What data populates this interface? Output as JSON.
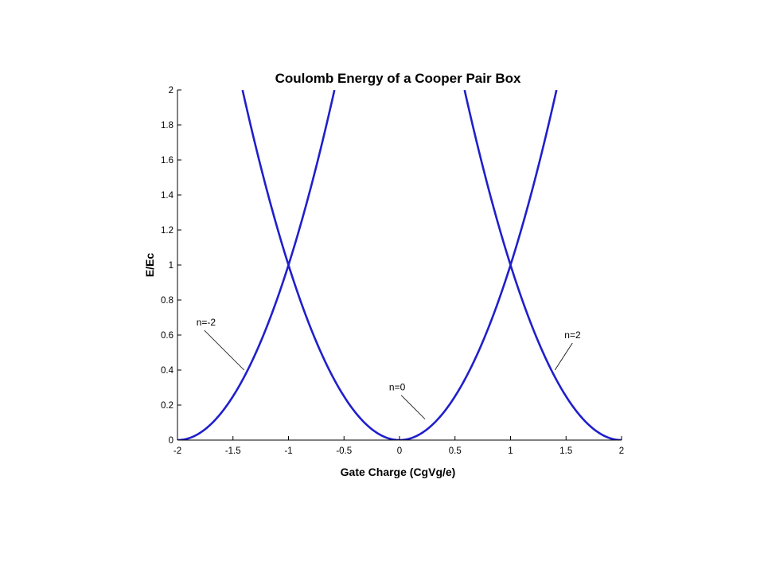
{
  "chart_data": {
    "type": "line",
    "title": "Coulomb Energy of a Cooper Pair Box",
    "xlabel": "Gate Charge (CgVg/e)",
    "ylabel": "E/Ec",
    "xlim": [
      -2,
      2
    ],
    "ylim": [
      0,
      2
    ],
    "grid": false,
    "xticks": [
      -2,
      -1.5,
      -1,
      -0.5,
      0,
      0.5,
      1,
      1.5,
      2
    ],
    "xtick_labels": [
      "-2",
      "-1.5",
      "-1",
      "-0.5",
      "0",
      "0.5",
      "1",
      "1.5",
      "2"
    ],
    "yticks": [
      0,
      0.2,
      0.4,
      0.6,
      0.8,
      1,
      1.2,
      1.4,
      1.6,
      1.8,
      2
    ],
    "ytick_labels": [
      "0",
      "0.2",
      "0.4",
      "0.6",
      "0.8",
      "1",
      "1.2",
      "1.4",
      "1.6",
      "1.8",
      "2"
    ],
    "series": [
      {
        "name": "n=-2",
        "color": "#1f1fcc",
        "formula": "(x+2)^2",
        "x": [
          -2,
          -1.75,
          -1.5,
          -1.25,
          -1,
          -0.75,
          -0.586
        ],
        "y": [
          0,
          0.0625,
          0.25,
          0.5625,
          1,
          1.5625,
          2
        ]
      },
      {
        "name": "n=0",
        "color": "#1f1fcc",
        "formula": "x^2",
        "x": [
          -1.414,
          -1,
          -0.5,
          0,
          0.5,
          1,
          1.414
        ],
        "y": [
          2,
          1,
          0.25,
          0,
          0.25,
          1,
          2
        ]
      },
      {
        "name": "n=2",
        "color": "#1f1fcc",
        "formula": "(x-2)^2",
        "x": [
          0.586,
          0.75,
          1,
          1.25,
          1.5,
          1.75,
          2
        ],
        "y": [
          2,
          1.5625,
          1,
          0.5625,
          0.25,
          0.0625,
          0
        ]
      }
    ],
    "annotations": [
      {
        "text": "n=-2",
        "x": -1.4,
        "y": 0.4
      },
      {
        "text": "n=0",
        "x": 0.23,
        "y": 0.12
      },
      {
        "text": "n=2",
        "x": 1.4,
        "y": 0.4
      }
    ],
    "line_color": "#1f1fcc"
  }
}
